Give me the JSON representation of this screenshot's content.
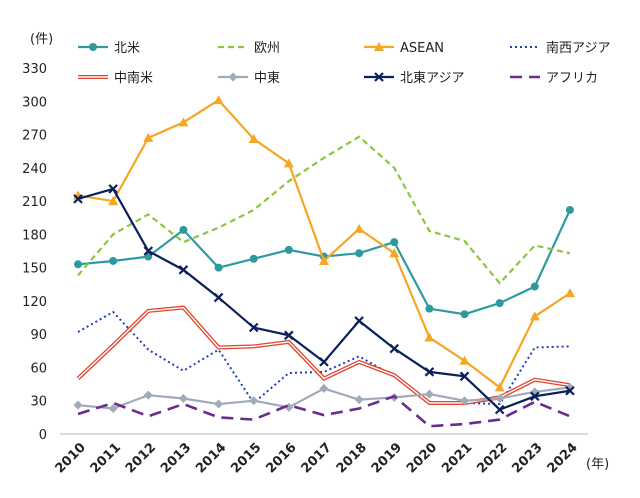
{
  "chart_data": {
    "type": "line",
    "yunit": "(件)",
    "xunit": "(年)",
    "ylim": [
      0,
      330
    ],
    "yticks": [
      0,
      30,
      60,
      90,
      120,
      150,
      180,
      210,
      240,
      270,
      300,
      330
    ],
    "grid": false,
    "legend_position": "top",
    "categories": [
      "2010",
      "2011",
      "2012",
      "2013",
      "2014",
      "2015",
      "2016",
      "2017",
      "2018",
      "2019",
      "2020",
      "2021",
      "2022",
      "2023",
      "2024"
    ],
    "series": [
      {
        "name": "北米",
        "color": "#2E9AA0",
        "style": "solid",
        "marker": "circle",
        "values": [
          153,
          156,
          160,
          184,
          150,
          158,
          166,
          160,
          163,
          173,
          113,
          108,
          118,
          133,
          202
        ]
      },
      {
        "name": "欧州",
        "color": "#8CC63F",
        "style": "dashed",
        "marker": "none",
        "values": [
          143,
          180,
          198,
          173,
          186,
          202,
          228,
          249,
          268,
          240,
          183,
          174,
          136,
          170,
          163
        ]
      },
      {
        "name": "ASEAN",
        "color": "#F5A623",
        "style": "solid",
        "marker": "triangle",
        "values": [
          215,
          210,
          267,
          281,
          301,
          266,
          244,
          156,
          185,
          163,
          87,
          66,
          42,
          106,
          127
        ]
      },
      {
        "name": "南西アジア",
        "color": "#1F3FBF",
        "style": "dotted",
        "marker": "none",
        "values": [
          92,
          110,
          76,
          57,
          76,
          28,
          55,
          56,
          70,
          52,
          29,
          28,
          27,
          78,
          79
        ]
      },
      {
        "name": "中南米",
        "color": "#E0442E",
        "style": "double",
        "marker": "none",
        "values": [
          50,
          80,
          111,
          114,
          78,
          79,
          83,
          50,
          65,
          53,
          28,
          28,
          33,
          49,
          44
        ]
      },
      {
        "name": "中東",
        "color": "#A0AAB8",
        "style": "solid",
        "marker": "diamond",
        "values": [
          26,
          23,
          35,
          32,
          27,
          30,
          24,
          41,
          31,
          33,
          36,
          30,
          32,
          38,
          42
        ]
      },
      {
        "name": "北東アジア",
        "color": "#0A1F5C",
        "style": "solid",
        "marker": "x",
        "values": [
          212,
          221,
          165,
          148,
          123,
          96,
          89,
          65,
          102,
          77,
          56,
          52,
          22,
          34,
          39
        ]
      },
      {
        "name": "アフリカ",
        "color": "#6A2C91",
        "style": "longdash",
        "marker": "none",
        "values": [
          18,
          28,
          16,
          27,
          15,
          13,
          26,
          17,
          23,
          34,
          7,
          9,
          13,
          29,
          16
        ]
      }
    ]
  }
}
